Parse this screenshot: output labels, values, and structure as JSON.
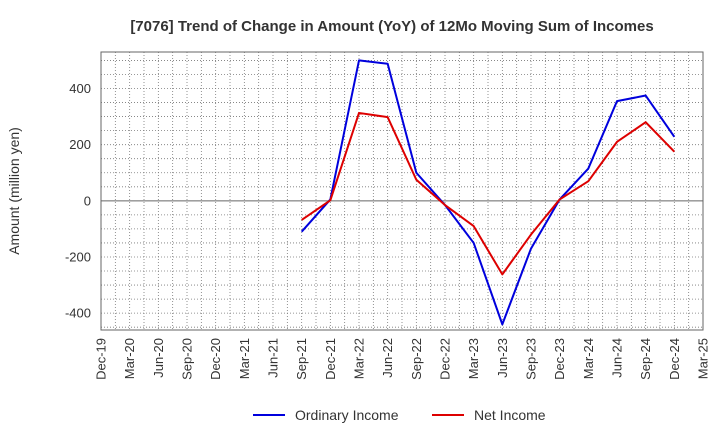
{
  "chart_data": {
    "type": "line",
    "title": "[7076]  Trend of Change in Amount (YoY) of 12Mo Moving Sum of Incomes",
    "ylabel": "Amount (million yen)",
    "xlabel": "",
    "categories": [
      "Dec-19",
      "Mar-20",
      "Jun-20",
      "Sep-20",
      "Dec-20",
      "Mar-21",
      "Jun-21",
      "Sep-21",
      "Dec-21",
      "Mar-22",
      "Jun-22",
      "Sep-22",
      "Dec-22",
      "Mar-23",
      "Jun-23",
      "Sep-23",
      "Dec-23",
      "Mar-24",
      "Jun-24",
      "Sep-24",
      "Dec-24",
      "Mar-25"
    ],
    "ylim": [
      -460,
      530
    ],
    "yticks": [
      -400,
      -200,
      0,
      200,
      400
    ],
    "ytick_labels": [
      "-400",
      "-200",
      "0",
      "200",
      "400"
    ],
    "grid": true,
    "legend_position": "bottom-center",
    "series": [
      {
        "name": "Ordinary Income",
        "color": "#0000dd",
        "values": [
          null,
          null,
          null,
          null,
          null,
          null,
          null,
          -110,
          5,
          500,
          488,
          100,
          -15,
          -150,
          -440,
          -170,
          5,
          115,
          355,
          375,
          228,
          null
        ]
      },
      {
        "name": "Net Income",
        "color": "#dd0000",
        "values": [
          null,
          null,
          null,
          null,
          null,
          null,
          null,
          -68,
          2,
          313,
          298,
          75,
          -15,
          -90,
          -262,
          -120,
          5,
          70,
          210,
          280,
          175,
          null
        ]
      }
    ]
  }
}
